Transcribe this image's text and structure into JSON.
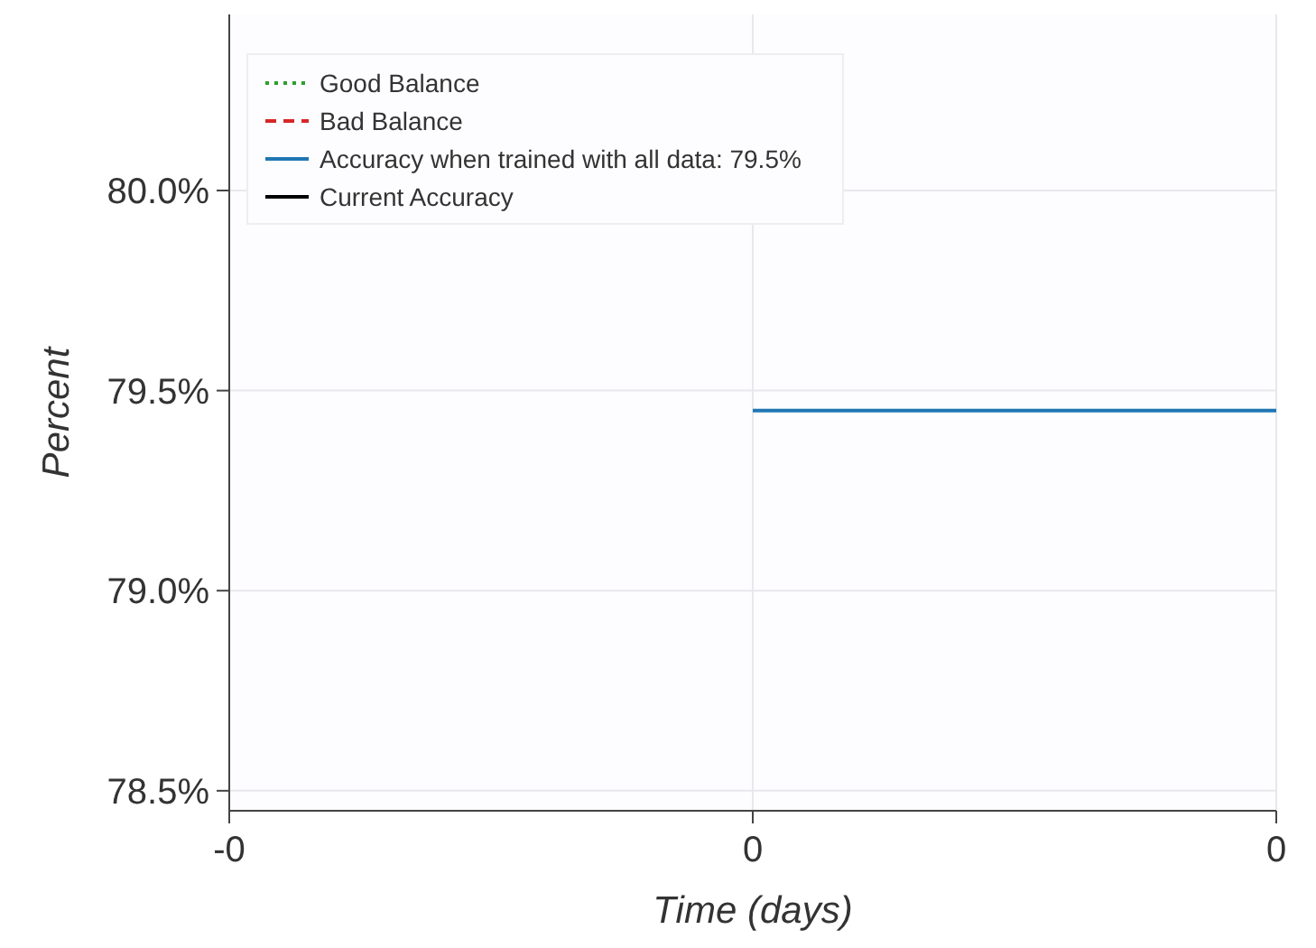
{
  "chart_data": {
    "type": "line",
    "xlabel": "Time (days)",
    "ylabel": "Percent",
    "xlim": [
      -0.4,
      0.4
    ],
    "xticks": [
      {
        "value": -0.4,
        "label": "-0"
      },
      {
        "value": 0,
        "label": "0"
      },
      {
        "value": 0.4,
        "label": "0"
      }
    ],
    "ylim": [
      78.45,
      80.44
    ],
    "yticks": [
      {
        "value": 78.5,
        "label": "78.5%"
      },
      {
        "value": 79,
        "label": "79.0%"
      },
      {
        "value": 79.5,
        "label": "79.5%"
      },
      {
        "value": 80,
        "label": "80.0%"
      }
    ],
    "series": [
      {
        "name": "Good Balance",
        "color": "#2ca02c",
        "line_style": "dotted"
      },
      {
        "name": "Bad Balance",
        "color": "#d62728",
        "line_style": "dashed"
      },
      {
        "name": "Accuracy when trained with all data: 79.5%",
        "color": "#1f77b4",
        "line_style": "solid",
        "x": [
          0,
          0.4
        ],
        "values": [
          79.45,
          79.45
        ]
      },
      {
        "name": "Current Accuracy",
        "color": "#000000",
        "line_style": "solid"
      }
    ],
    "grid": true,
    "legend": "top left"
  }
}
